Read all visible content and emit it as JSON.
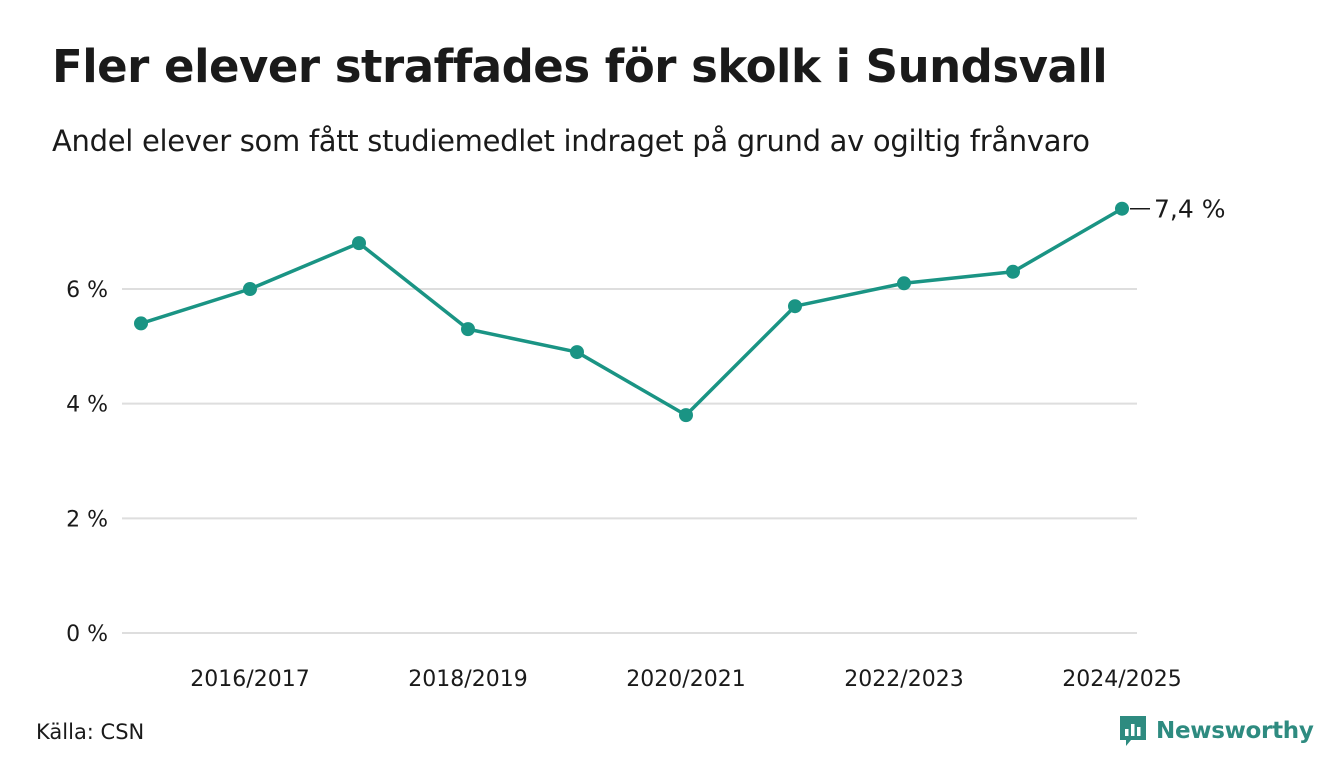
{
  "title": "Fler elever straffades för skolk i Sundsvall",
  "subtitle": "Andel elever som fått studiemedlet indraget på grund av ogiltig frånvaro",
  "source": "Källa: CSN",
  "brand": {
    "name": "Newsworthy",
    "icon": "newsworthy-logo-icon",
    "color": "#2e8b80"
  },
  "chart_data": {
    "type": "line",
    "title": "",
    "xlabel": "",
    "ylabel": "",
    "x": [
      "2015/2016",
      "2016/2017",
      "2017/2018",
      "2018/2019",
      "2019/2020",
      "2020/2021",
      "2021/2022",
      "2022/2023",
      "2023/2024",
      "2024/2025"
    ],
    "x_tick_labels": [
      "2016/2017",
      "2018/2019",
      "2020/2021",
      "2022/2023",
      "2024/2025"
    ],
    "series": [
      {
        "name": "",
        "color": "#1a9484",
        "values": [
          5.4,
          6.0,
          6.8,
          5.3,
          4.9,
          3.8,
          5.7,
          6.1,
          6.3,
          7.4
        ]
      }
    ],
    "ylim": [
      0,
      7.6
    ],
    "y_ticks": [
      0,
      2,
      4,
      6
    ],
    "y_tick_labels": [
      "0 %",
      "2 %",
      "4 %",
      "6 %"
    ],
    "grid": true,
    "end_label": "7,4 %"
  }
}
